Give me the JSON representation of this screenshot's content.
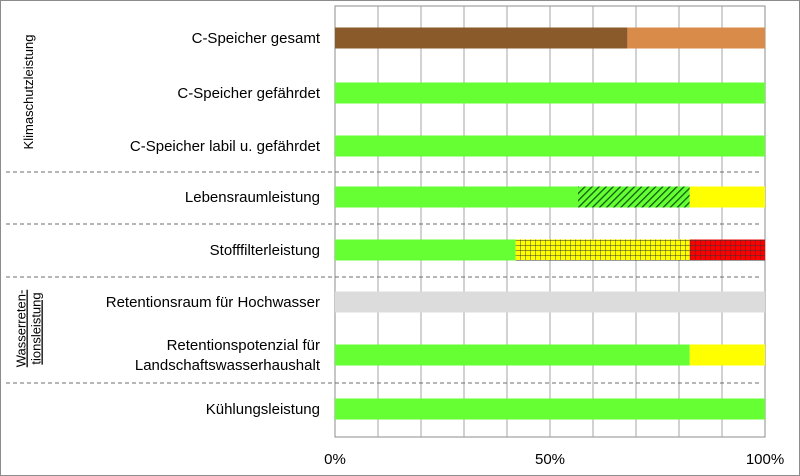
{
  "chart_data": {
    "type": "bar",
    "orientation": "horizontal",
    "stacked": true,
    "categories": [
      "C-Speicher gesamt",
      "C-Speicher gefährdet",
      "C-Speicher labil u. gefährdet",
      "Lebensraumleistung",
      "Stofffilterleistung",
      "Retentionsraum für Hochwasser",
      [
        "Retentionspotenzial für",
        "Landschaftswasserhaushalt"
      ],
      "Kühlungsleistung"
    ],
    "segments": [
      [
        {
          "value": 68,
          "color": "#8b5a2b",
          "pattern": "solid"
        },
        {
          "value": 32,
          "color": "#d98c4a",
          "pattern": "solid"
        }
      ],
      [
        {
          "value": 100,
          "color": "#66ff33",
          "pattern": "solid"
        }
      ],
      [
        {
          "value": 100,
          "color": "#66ff33",
          "pattern": "solid"
        }
      ],
      [
        {
          "value": 56.5,
          "color": "#66ff33",
          "pattern": "solid"
        },
        {
          "value": 26,
          "color": "#66ff33",
          "pattern": "hatch-dark-green"
        },
        {
          "value": 17.5,
          "color": "#ffff00",
          "pattern": "solid"
        }
      ],
      [
        {
          "value": 42,
          "color": "#66ff33",
          "pattern": "solid"
        },
        {
          "value": 40.5,
          "color": "#ffff00",
          "pattern": "grid-dark"
        },
        {
          "value": 17.5,
          "color": "#ff0000",
          "pattern": "grid-dark"
        }
      ],
      [
        {
          "value": 100,
          "color": "#dcdcdc",
          "pattern": "solid"
        }
      ],
      [
        {
          "value": 82.5,
          "color": "#66ff33",
          "pattern": "solid"
        },
        {
          "value": 17.5,
          "color": "#ffff00",
          "pattern": "solid"
        }
      ],
      [
        {
          "value": 100,
          "color": "#66ff33",
          "pattern": "solid"
        }
      ]
    ],
    "xlim": [
      0,
      100
    ],
    "x_ticks": [
      "0%",
      "50%",
      "100%"
    ],
    "grid": "vertical",
    "group_labels": [
      {
        "lines": [
          "Klimaschutzleistung"
        ],
        "rows": [
          0,
          2
        ],
        "underline": false
      },
      {
        "lines": [
          "Wasserreten-",
          "tionsleistung"
        ],
        "rows": [
          5,
          6
        ],
        "underline": true
      }
    ],
    "separators_after_rows": [
      2,
      3,
      4,
      6
    ]
  }
}
